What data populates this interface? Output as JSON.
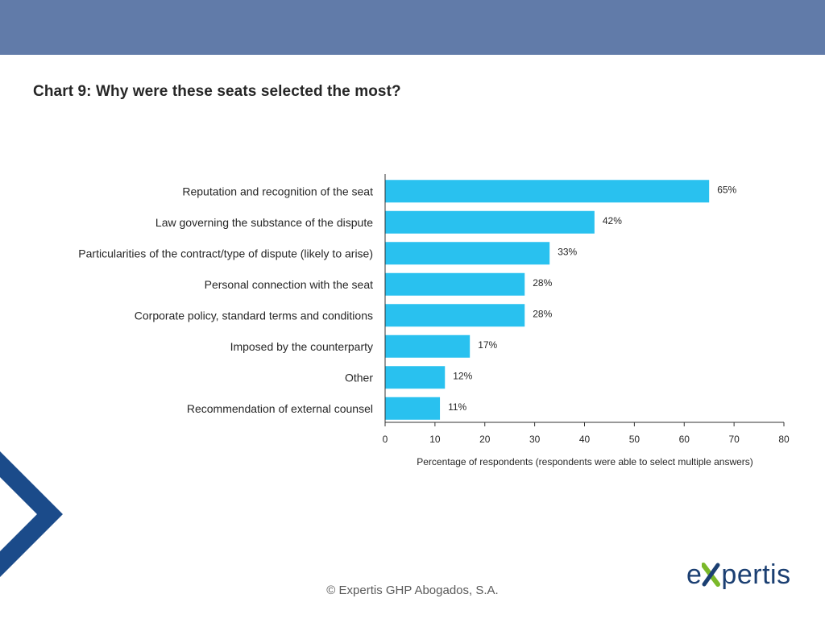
{
  "header": {
    "chart_title": "Chart 9: Why were these seats selected the most?"
  },
  "footer": {
    "copyright": "© Expertis GHP Abogados, S.A.",
    "logo_text_start": "e",
    "logo_text_end": "pertis"
  },
  "colors": {
    "banner": "#617ba9",
    "bar": "#29c1ef",
    "chevron": "#1b4b8a",
    "logo_blue": "#1b3f72",
    "logo_green": "#7ab829"
  },
  "chart_data": {
    "type": "bar",
    "orientation": "horizontal",
    "title": "Chart 9: Why were these seats selected the most?",
    "xlabel": "Percentage of respondents (respondents were able to select multiple answers)",
    "ylabel": "",
    "xlim": [
      0,
      80
    ],
    "x_ticks": [
      0,
      10,
      20,
      30,
      40,
      50,
      60,
      70,
      80
    ],
    "grid": false,
    "categories": [
      "Reputation and recognition of the seat",
      "Law governing the substance of the dispute",
      "Particularities of the contract/type of dispute (likely to arise)",
      "Personal connection with the seat",
      "Corporate policy, standard terms and conditions",
      "Imposed by the counterparty",
      "Other",
      "Recommendation of external counsel"
    ],
    "values": [
      65,
      42,
      33,
      28,
      28,
      17,
      12,
      11
    ],
    "value_labels": [
      "65%",
      "42%",
      "33%",
      "28%",
      "28%",
      "17%",
      "12%",
      "11%"
    ]
  }
}
